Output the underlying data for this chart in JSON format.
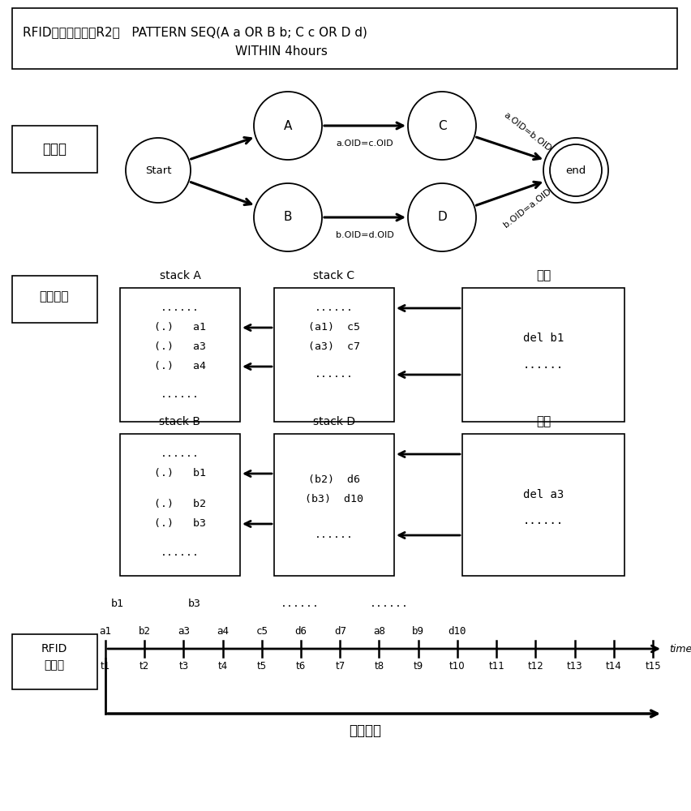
{
  "title_line1": "RFID去交叉读规则R2：   PATTERN SEQ(A a OR B b; C c OR D d)",
  "title_line2": "WITHIN 4hours",
  "label_automaton": "自动机",
  "label_stack": "自动机栈",
  "label_rfid_line1": "RFID",
  "label_rfid_line2": "事件流",
  "output1_label": "输出",
  "output2_label": "输出",
  "sliding_window_label": "滑动窗口",
  "time_label": "time",
  "timeline_ticks": [
    "t1",
    "t2",
    "t3",
    "t4",
    "t5",
    "t6",
    "t7",
    "t8",
    "t9",
    "t10",
    "t11",
    "t12",
    "t13",
    "t14",
    "t15"
  ]
}
